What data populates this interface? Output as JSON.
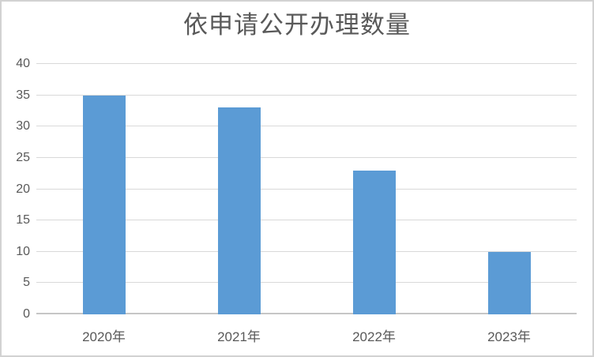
{
  "chart_data": {
    "type": "bar",
    "title": "依申请公开办理数量",
    "categories": [
      "2020年",
      "2021年",
      "2022年",
      "2023年"
    ],
    "values": [
      35,
      33,
      23,
      10
    ],
    "yticks": [
      0,
      5,
      10,
      15,
      20,
      25,
      30,
      35,
      40
    ],
    "ylim": [
      0,
      40
    ],
    "ytick_step": 5,
    "xlabel": "",
    "ylabel": "",
    "grid": true,
    "legend": "none",
    "colors": {
      "bar": "#5B9BD5",
      "gridline": "#D9D9D9",
      "axis_line": "#C6C6C6",
      "text": "#595959",
      "frame_border": "#D2D2D2",
      "background": "#FFFFFF"
    }
  }
}
